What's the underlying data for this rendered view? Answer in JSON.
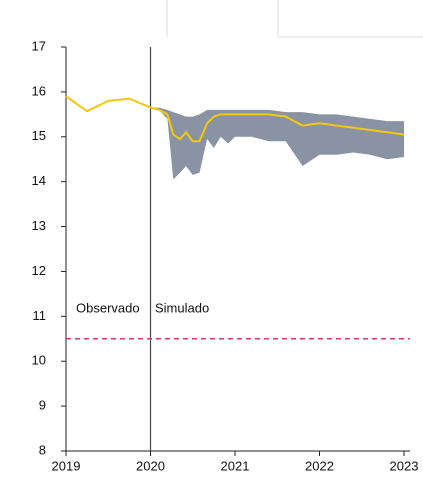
{
  "chart_data": {
    "type": "line",
    "observed": {
      "color": "#f2c811",
      "x": [
        2019,
        2019.25,
        2019.5,
        2019.75,
        2020
      ],
      "values": [
        15.9,
        15.57,
        15.8,
        15.85,
        15.65
      ]
    },
    "simulated": {
      "color": "#f2c811",
      "x": [
        2020,
        2020.1,
        2020.2,
        2020.27,
        2020.35,
        2020.42,
        2020.5,
        2020.58,
        2020.67,
        2020.75,
        2020.83,
        2020.92,
        2021,
        2021.2,
        2021.4,
        2021.6,
        2021.8,
        2022,
        2022.2,
        2022.4,
        2022.6,
        2022.8,
        2023
      ],
      "values": [
        15.65,
        15.6,
        15.5,
        15.05,
        14.95,
        15.1,
        14.9,
        14.9,
        15.3,
        15.45,
        15.5,
        15.5,
        15.5,
        15.5,
        15.5,
        15.45,
        15.25,
        15.3,
        15.25,
        15.2,
        15.15,
        15.1,
        15.05
      ],
      "upper": [
        15.65,
        15.65,
        15.6,
        15.55,
        15.5,
        15.45,
        15.45,
        15.5,
        15.6,
        15.6,
        15.6,
        15.6,
        15.6,
        15.6,
        15.6,
        15.55,
        15.55,
        15.5,
        15.5,
        15.45,
        15.4,
        15.35,
        15.35
      ],
      "lower": [
        15.65,
        15.6,
        15.4,
        14.05,
        14.2,
        14.35,
        14.15,
        14.2,
        14.95,
        14.75,
        15.0,
        14.85,
        15.0,
        15.0,
        14.9,
        14.9,
        14.35,
        14.6,
        14.6,
        14.65,
        14.6,
        14.5,
        14.55
      ],
      "band_color": "#8a93a3"
    },
    "divider_x": 2020,
    "reference": {
      "value": 10.5,
      "color": "#d6336c"
    },
    "annotations": [
      "Observado",
      "Simulado"
    ],
    "xlim": [
      2019,
      2023
    ],
    "xticks": [
      2019,
      2020,
      2021,
      2022,
      2023
    ],
    "ylim": [
      8,
      17
    ],
    "yticks": [
      8,
      9,
      10,
      11,
      12,
      13,
      14,
      15,
      16,
      17
    ]
  }
}
